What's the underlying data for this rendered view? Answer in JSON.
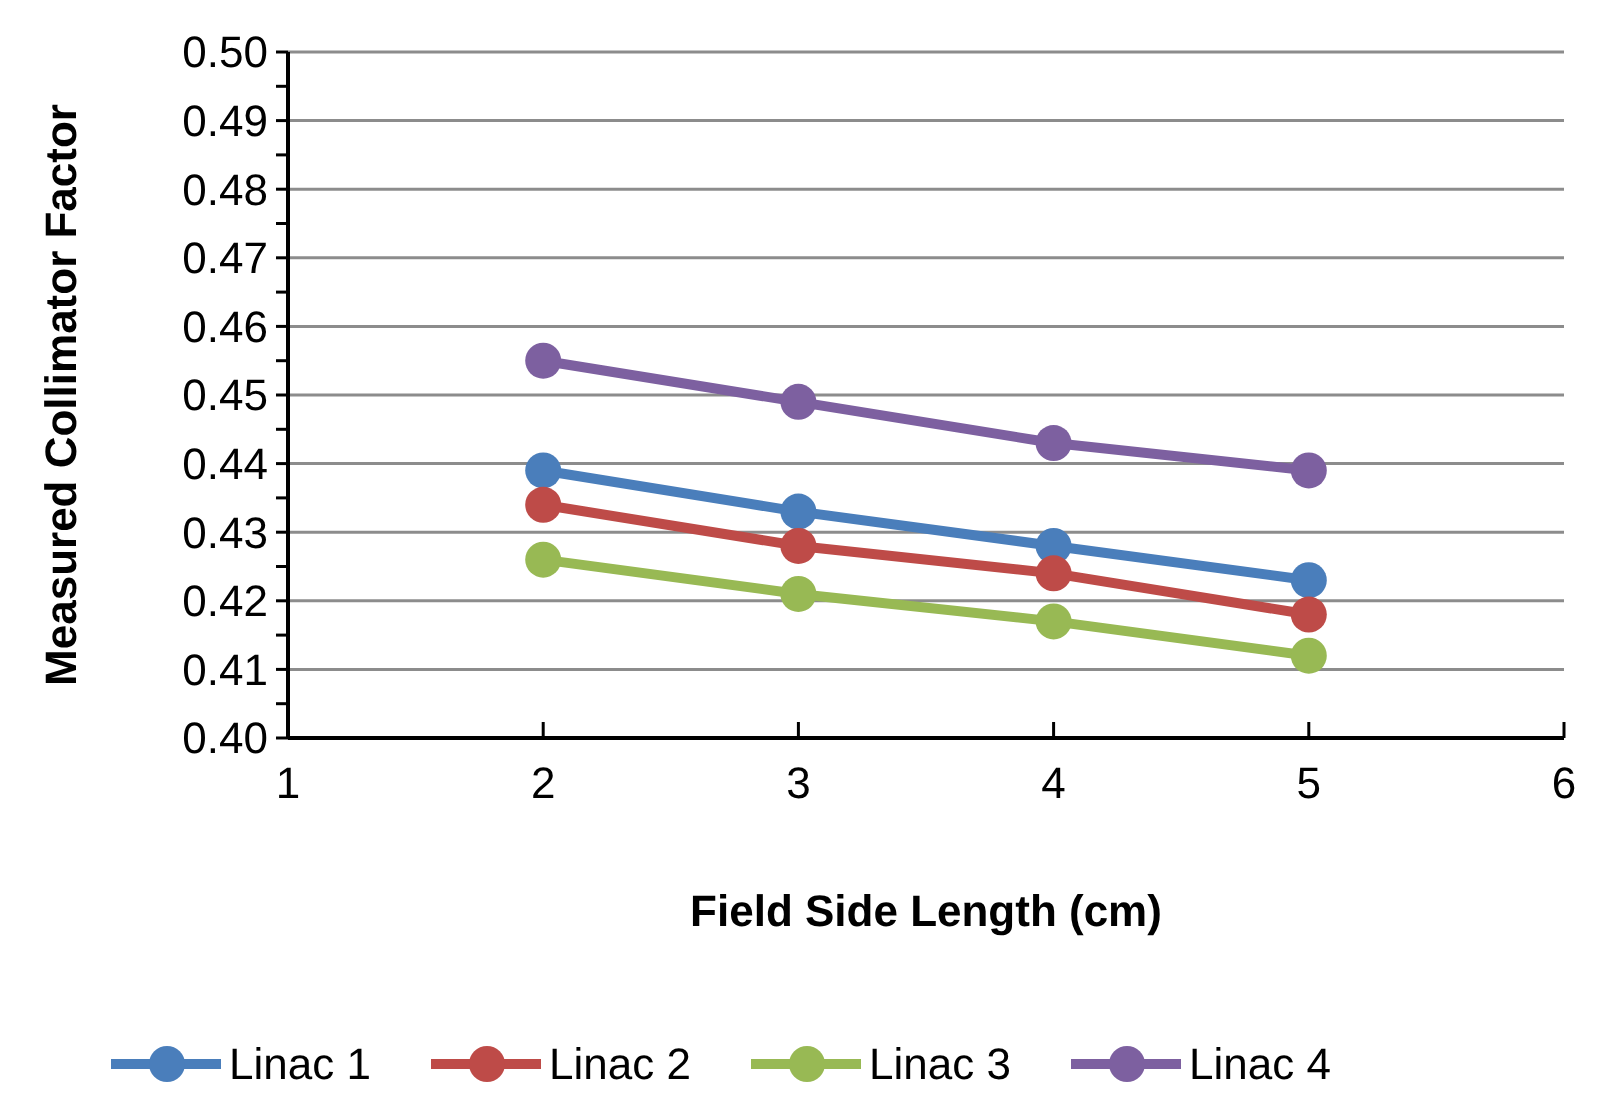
{
  "chart_data": {
    "type": "line",
    "xlabel": "Field Side Length (cm)",
    "ylabel": "Measured Collimator Factor",
    "x": [
      2,
      3,
      4,
      5
    ],
    "series": [
      {
        "name": "Linac 1",
        "color": "#4a7ebb",
        "values": [
          0.439,
          0.433,
          0.428,
          0.423
        ]
      },
      {
        "name": "Linac 2",
        "color": "#be4b48",
        "values": [
          0.434,
          0.428,
          0.424,
          0.418
        ]
      },
      {
        "name": "Linac 3",
        "color": "#98b954",
        "values": [
          0.426,
          0.421,
          0.417,
          0.412
        ]
      },
      {
        "name": "Linac 4",
        "color": "#7d60a0",
        "values": [
          0.455,
          0.449,
          0.443,
          0.439
        ]
      }
    ],
    "xlim": [
      1,
      6
    ],
    "xticks": [
      1,
      2,
      3,
      4,
      5,
      6
    ],
    "ylim": [
      0.4,
      0.5
    ],
    "yticks": [
      {
        "value": 0.4,
        "label": "0.40"
      },
      {
        "value": 0.405,
        "label": null
      },
      {
        "value": 0.41,
        "label": "0.41"
      },
      {
        "value": 0.415,
        "label": null
      },
      {
        "value": 0.42,
        "label": "0.42"
      },
      {
        "value": 0.425,
        "label": null
      },
      {
        "value": 0.43,
        "label": "0.43"
      },
      {
        "value": 0.435,
        "label": null
      },
      {
        "value": 0.44,
        "label": "0.44"
      },
      {
        "value": 0.445,
        "label": null
      },
      {
        "value": 0.45,
        "label": "0.45"
      },
      {
        "value": 0.455,
        "label": null
      },
      {
        "value": 0.46,
        "label": "0.46"
      },
      {
        "value": 0.465,
        "label": null
      },
      {
        "value": 0.47,
        "label": "0.47"
      },
      {
        "value": 0.475,
        "label": null
      },
      {
        "value": 0.48,
        "label": "0.48"
      },
      {
        "value": 0.485,
        "label": null
      },
      {
        "value": 0.49,
        "label": "0.49"
      },
      {
        "value": 0.495,
        "label": null
      },
      {
        "value": 0.5,
        "label": "0.50"
      }
    ],
    "grid": "y",
    "legend": "bottom",
    "marker": "circle",
    "line_style": "solid"
  }
}
